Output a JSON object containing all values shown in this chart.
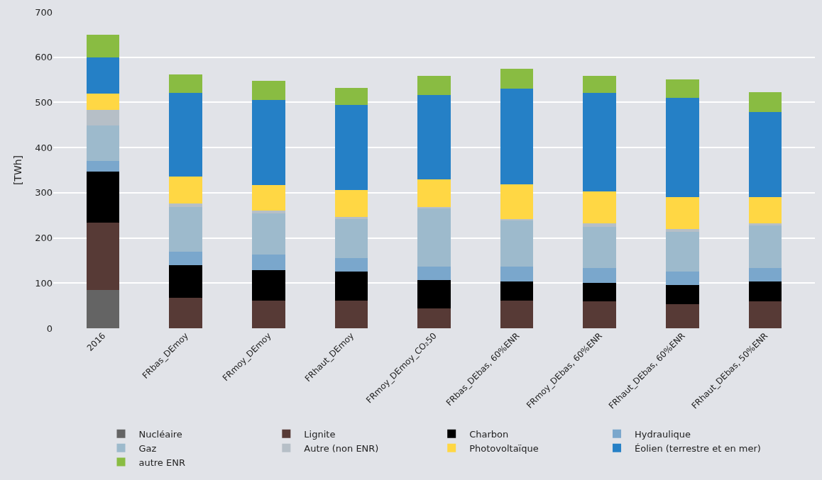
{
  "chart_data": {
    "type": "bar",
    "stacked": true,
    "ylabel": "[TWh]",
    "ylim": [
      0,
      700
    ],
    "yticks": [
      0,
      100,
      200,
      300,
      400,
      500,
      600,
      700
    ],
    "grid": "y",
    "legend": "bottom",
    "categories": [
      "2016",
      "FRbas_DEmoy",
      "FRmoy_DEmoy",
      "FRhaut_DEmoy",
      "FRmoy_DEmoy_CO₂50",
      "FRbas_DEbas, 60%ENR",
      "FRmoy_DEbas, 60%ENR",
      "FRhaut_DEbas, 60%ENR",
      "FRhaut_DEbas, 50%ENR"
    ],
    "series": [
      {
        "name": "Nucléaire",
        "color": "#646464",
        "values": [
          85,
          0,
          0,
          0,
          0,
          0,
          0,
          0,
          0
        ]
      },
      {
        "name": "Lignite",
        "color": "#573a36",
        "values": [
          149,
          67,
          62,
          62,
          44,
          62,
          59,
          54,
          59
        ]
      },
      {
        "name": "Charbon",
        "color": "#000000",
        "values": [
          113,
          73,
          67,
          63,
          63,
          41,
          41,
          42,
          44
        ]
      },
      {
        "name": "Hydraulique",
        "color": "#7aa7cc",
        "values": [
          23,
          30,
          34,
          31,
          29,
          33,
          33,
          30,
          30
        ]
      },
      {
        "name": "Gaz",
        "color": "#9dbacc",
        "values": [
          79,
          99,
          91,
          85,
          129,
          102,
          91,
          87,
          94
        ]
      },
      {
        "name": "Autre (non ENR)",
        "color": "#b6bfc7",
        "values": [
          34,
          7,
          7,
          5,
          4,
          4,
          8,
          7,
          5
        ]
      },
      {
        "name": "Photovoltaïque",
        "color": "#ffd744",
        "values": [
          37,
          60,
          56,
          60,
          60,
          76,
          71,
          71,
          59
        ]
      },
      {
        "name": "Éolien (terrestre et en mer)",
        "color": "#2580c6",
        "values": [
          80,
          185,
          189,
          188,
          188,
          213,
          218,
          219,
          188
        ]
      },
      {
        "name": "autre ENR",
        "color": "#89bc42",
        "values": [
          49,
          41,
          41,
          38,
          42,
          43,
          38,
          41,
          43
        ]
      }
    ]
  }
}
